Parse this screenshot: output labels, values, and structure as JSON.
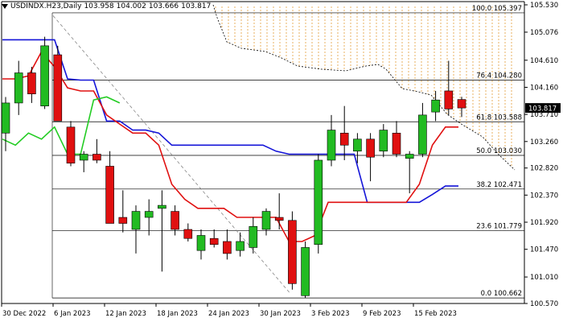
{
  "window": {
    "symbol_label": "USDINDX.H23,Daily",
    "ohlc": [
      "103.958",
      "104.002",
      "103.666",
      "103.817"
    ]
  },
  "price_axis": {
    "ticks": [
      "105.530",
      "105.076",
      "104.610",
      "104.160",
      "103.710",
      "103.260",
      "102.820",
      "102.370",
      "101.920",
      "101.470",
      "101.010",
      "100.570"
    ],
    "current_price": "103.817",
    "current_price_bg": "#000000"
  },
  "time_axis": {
    "labels": [
      "30 Dec 2022",
      "6 Jan 2023",
      "12 Jan 2023",
      "18 Jan 2023",
      "24 Jan 2023",
      "30 Jan 2023",
      "3 Feb 2023",
      "9 Feb 2023",
      "15 Feb 2023"
    ]
  },
  "fibonacci": {
    "levels": [
      {
        "label": "100.0 105.397",
        "price": 105.397
      },
      {
        "label": "76.4 104.280",
        "price": 104.28
      },
      {
        "label": "61.8 103.588",
        "price": 103.588
      },
      {
        "label": "50.0 103.030",
        "price": 103.03
      },
      {
        "label": "38.2 102.471",
        "price": 102.471
      },
      {
        "label": "23.6 101.779",
        "price": 101.779
      },
      {
        "label": "0.0 100.662",
        "price": 100.662
      }
    ]
  },
  "colors": {
    "bull_candle": "#22bb22",
    "bear_candle": "#e01010",
    "kijun_line": "#1414d8",
    "tenkan_line": "#e01010",
    "chikou_line": "#22cc22",
    "cloud_hatch": "#e8b060",
    "grid_line": "#000000"
  },
  "chart_data": {
    "type": "candlestick",
    "indicator": "Ichimoku",
    "ylim": [
      100.57,
      105.53
    ],
    "candles": [
      {
        "o": 103.4,
        "h": 104.0,
        "l": 103.1,
        "c": 103.9
      },
      {
        "o": 103.9,
        "h": 104.6,
        "l": 103.7,
        "c": 104.4
      },
      {
        "o": 104.4,
        "h": 104.5,
        "l": 103.9,
        "c": 104.05
      },
      {
        "o": 103.85,
        "h": 105.0,
        "l": 103.8,
        "c": 104.85
      },
      {
        "o": 104.7,
        "h": 104.85,
        "l": 103.6,
        "c": 103.6
      },
      {
        "o": 103.5,
        "h": 103.6,
        "l": 102.85,
        "c": 102.9
      },
      {
        "o": 102.95,
        "h": 103.1,
        "l": 102.75,
        "c": 103.05
      },
      {
        "o": 103.05,
        "h": 103.3,
        "l": 102.9,
        "c": 102.95
      },
      {
        "o": 102.85,
        "h": 103.1,
        "l": 101.9,
        "c": 101.9
      },
      {
        "o": 102.0,
        "h": 102.45,
        "l": 101.75,
        "c": 101.9
      },
      {
        "o": 101.8,
        "h": 102.2,
        "l": 101.4,
        "c": 102.1
      },
      {
        "o": 102.0,
        "h": 102.3,
        "l": 101.7,
        "c": 102.1
      },
      {
        "o": 102.15,
        "h": 102.45,
        "l": 101.1,
        "c": 102.2
      },
      {
        "o": 102.1,
        "h": 102.2,
        "l": 101.7,
        "c": 101.8
      },
      {
        "o": 101.8,
        "h": 101.9,
        "l": 101.6,
        "c": 101.65
      },
      {
        "o": 101.45,
        "h": 101.8,
        "l": 101.3,
        "c": 101.7
      },
      {
        "o": 101.65,
        "h": 101.8,
        "l": 101.5,
        "c": 101.55
      },
      {
        "o": 101.6,
        "h": 101.8,
        "l": 101.3,
        "c": 101.4
      },
      {
        "o": 101.45,
        "h": 101.75,
        "l": 101.35,
        "c": 101.6
      },
      {
        "o": 101.5,
        "h": 102.0,
        "l": 101.4,
        "c": 101.85
      },
      {
        "o": 101.8,
        "h": 102.15,
        "l": 101.7,
        "c": 102.1
      },
      {
        "o": 102.0,
        "h": 102.4,
        "l": 101.8,
        "c": 101.95
      },
      {
        "o": 101.95,
        "h": 102.1,
        "l": 100.8,
        "c": 100.9
      },
      {
        "o": 100.7,
        "h": 101.6,
        "l": 100.66,
        "c": 101.5
      },
      {
        "o": 101.55,
        "h": 103.05,
        "l": 101.4,
        "c": 102.95
      },
      {
        "o": 102.95,
        "h": 103.7,
        "l": 102.85,
        "c": 103.45
      },
      {
        "o": 103.4,
        "h": 103.85,
        "l": 102.95,
        "c": 103.2
      },
      {
        "o": 103.1,
        "h": 103.4,
        "l": 102.9,
        "c": 103.3
      },
      {
        "o": 103.3,
        "h": 103.4,
        "l": 102.6,
        "c": 103.0
      },
      {
        "o": 103.1,
        "h": 103.55,
        "l": 103.0,
        "c": 103.45
      },
      {
        "o": 103.4,
        "h": 103.6,
        "l": 103.0,
        "c": 103.05
      },
      {
        "o": 102.98,
        "h": 103.1,
        "l": 102.4,
        "c": 103.05
      },
      {
        "o": 103.05,
        "h": 103.9,
        "l": 103.0,
        "c": 103.7
      },
      {
        "o": 103.75,
        "h": 104.1,
        "l": 103.6,
        "c": 103.95
      },
      {
        "o": 104.1,
        "h": 104.6,
        "l": 103.7,
        "c": 103.8
      },
      {
        "o": 103.958,
        "h": 104.002,
        "l": 103.666,
        "c": 103.817
      }
    ],
    "kijun": [
      104.95,
      104.95,
      104.95,
      104.95,
      104.95,
      104.3,
      104.28,
      104.28,
      103.6,
      103.6,
      103.45,
      103.45,
      103.4,
      103.2,
      103.2,
      103.2,
      103.2,
      103.2,
      103.2,
      103.2,
      103.2,
      103.1,
      103.05,
      103.05,
      103.05,
      103.05,
      103.05,
      103.05,
      102.25,
      102.25,
      102.25,
      102.25,
      102.25,
      102.38,
      102.52,
      102.52
    ],
    "tenkan": [
      104.3,
      104.3,
      104.35,
      104.75,
      104.5,
      104.15,
      104.1,
      104.1,
      103.7,
      103.55,
      103.4,
      103.4,
      103.2,
      102.55,
      102.3,
      102.15,
      102.15,
      102.15,
      102.0,
      102.0,
      102.0,
      102.0,
      101.6,
      101.6,
      101.7,
      102.25,
      102.25,
      102.25,
      102.25,
      102.25,
      102.25,
      102.25,
      102.55,
      103.2,
      103.5,
      103.5
    ],
    "chikou": [
      103.3,
      103.2,
      103.4,
      103.3,
      103.5,
      103.05,
      103.05,
      103.95,
      104.0,
      103.9
    ]
  }
}
